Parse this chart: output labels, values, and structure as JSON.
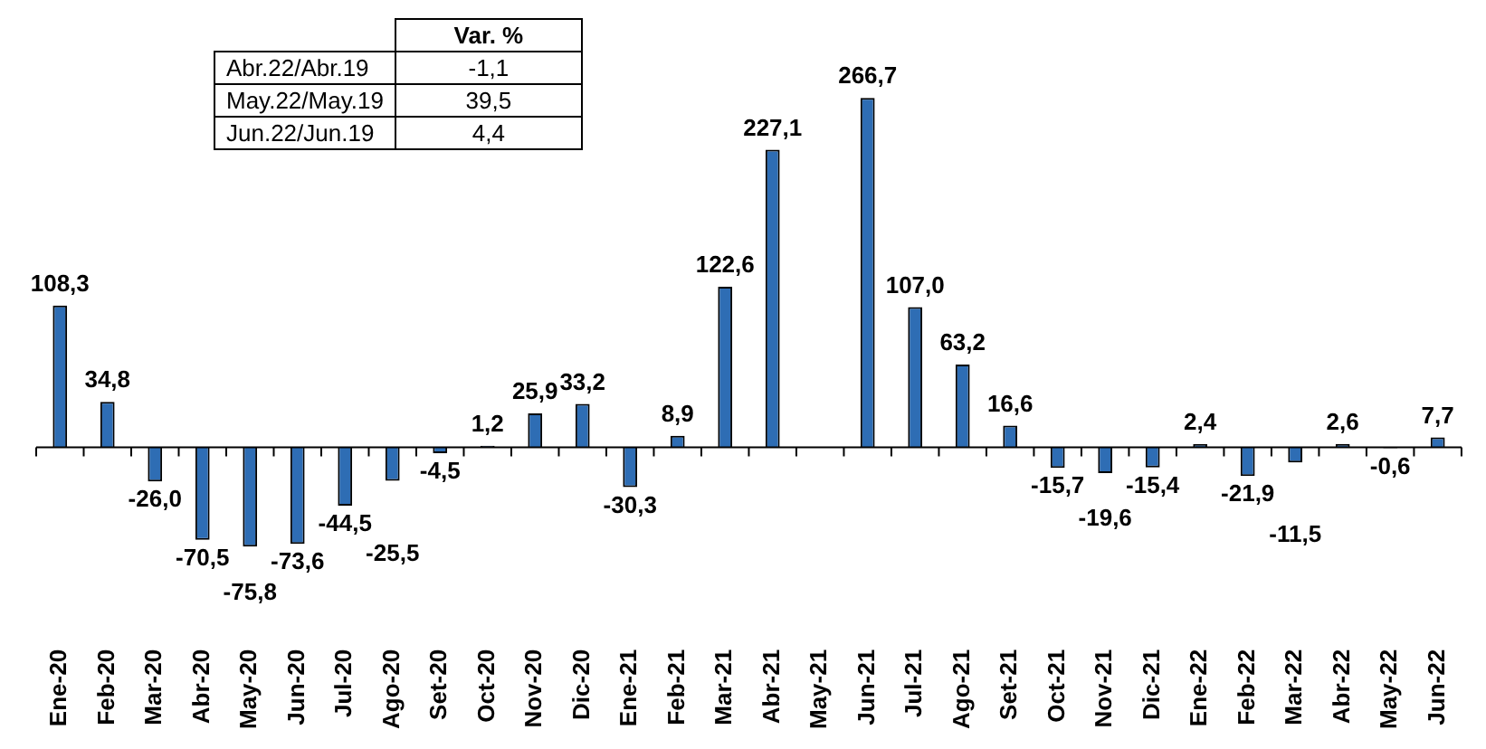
{
  "chart_data": {
    "type": "bar",
    "relative": false,
    "categories": [
      "Ene-20",
      "Feb-20",
      "Mar-20",
      "Abr-20",
      "May-20",
      "Jun-20",
      "Jul-20",
      "Ago-20",
      "Set-20",
      "Oct-20",
      "Nov-20",
      "Dic-20",
      "Ene-21",
      "Feb-21",
      "Mar-21",
      "Abr-21",
      "May-21",
      "Jun-21",
      "Jul-21",
      "Ago-21",
      "Set-21",
      "Oct-21",
      "Nov-21",
      "Dic-21",
      "Ene-22",
      "Feb-22",
      "Mar-22",
      "Abr-22",
      "May-22",
      "Jun-22"
    ],
    "values": [
      108.3,
      34.8,
      -26.0,
      -70.5,
      -75.8,
      -73.6,
      -44.5,
      -25.5,
      -4.5,
      1.2,
      25.9,
      33.2,
      -30.3,
      8.9,
      122.6,
      227.1,
      null,
      266.7,
      107.0,
      63.2,
      16.6,
      -15.7,
      -19.6,
      -15.4,
      2.4,
      -21.9,
      -11.5,
      2.6,
      -0.6,
      7.7
    ],
    "value_labels": [
      "108,3",
      "34,8",
      "-26,0",
      "-70,5",
      "-75,8",
      "-73,6",
      "-44,5",
      "-25,5",
      "-4,5",
      "1,2",
      "25,9",
      "33,2",
      "-30,3",
      "8,9",
      "122,6",
      "227,1",
      null,
      "266,7",
      "107,0",
      "63,2",
      "16,6",
      "-15,7",
      "-19,6",
      "-15,4",
      "2,4",
      "-21,9",
      "-11,5",
      "2,6",
      "-0,6",
      "7,7"
    ],
    "color": "#2e6db4",
    "annotations": [
      "Var. %",
      "Abr.22/Abr.19",
      "-1,1",
      "May.22/May.19",
      "39,5",
      "Jun.22/Jun.19",
      "4,4"
    ],
    "grid": false,
    "legend": false
  }
}
